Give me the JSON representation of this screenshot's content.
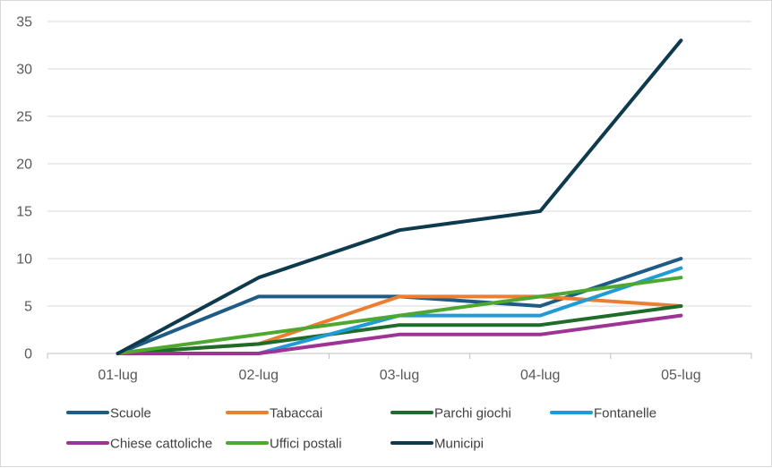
{
  "chart_data": {
    "type": "line",
    "categories": [
      "01-lug",
      "02-lug",
      "03-lug",
      "04-lug",
      "05-lug"
    ],
    "ylim": [
      0,
      35
    ],
    "yticks": [
      0,
      5,
      10,
      15,
      20,
      25,
      30,
      35
    ],
    "grid": true,
    "legend_position": "bottom",
    "series": [
      {
        "name": "Scuole",
        "color": "#1f5c85",
        "values": [
          0,
          6,
          6,
          5,
          10
        ]
      },
      {
        "name": "Tabaccai",
        "color": "#ed7d31",
        "values": [
          0,
          1,
          6,
          6,
          5
        ]
      },
      {
        "name": "Parchi giochi",
        "color": "#1e6b2a",
        "values": [
          0,
          1,
          3,
          3,
          5
        ]
      },
      {
        "name": "Fontanelle",
        "color": "#1f9bd7",
        "values": [
          0,
          0,
          4,
          4,
          9
        ]
      },
      {
        "name": "Chiese cattoliche",
        "color": "#9e3396",
        "values": [
          0,
          0,
          2,
          2,
          4
        ]
      },
      {
        "name": "Uffici postali",
        "color": "#4ea72e",
        "values": [
          0,
          2,
          4,
          6,
          8
        ]
      },
      {
        "name": "Municipi",
        "color": "#0e3a4d",
        "values": [
          0,
          8,
          13,
          15,
          33
        ]
      }
    ]
  }
}
